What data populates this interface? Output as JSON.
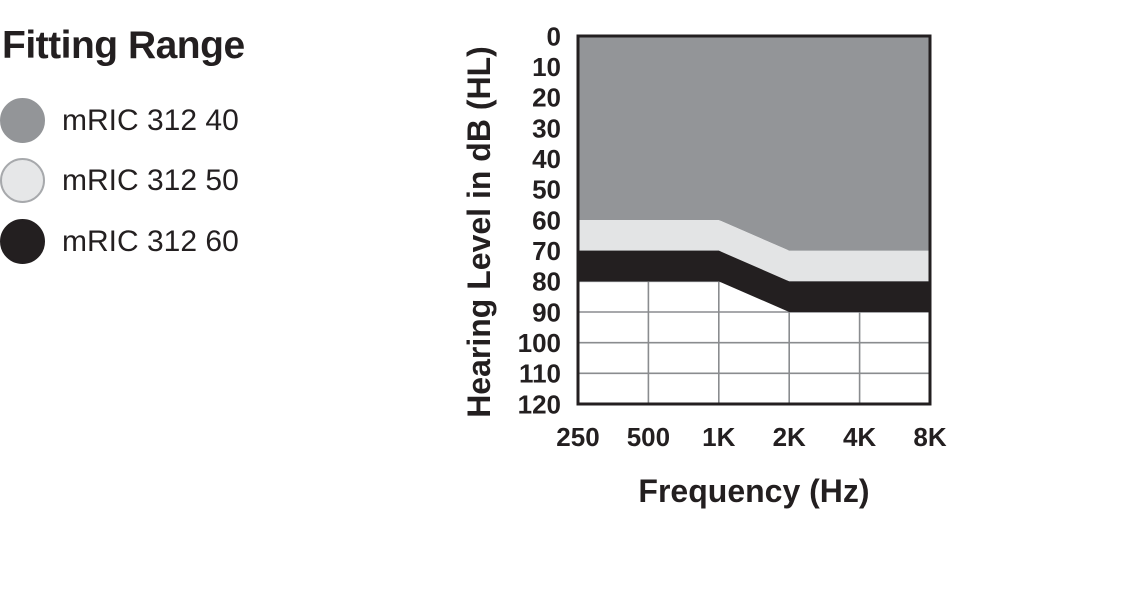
{
  "page": {
    "background": "#ffffff"
  },
  "legend": {
    "title": "Fitting Range",
    "items": [
      {
        "label": "mRIC 312 40",
        "color": "#939598",
        "ring": "#939598"
      },
      {
        "label": "mRIC 312 50",
        "color": "#e6e7e8",
        "ring": "#a7a9ac"
      },
      {
        "label": "mRIC 312 60",
        "color": "#231f20",
        "ring": "#231f20"
      }
    ]
  },
  "chart_data": {
    "type": "area",
    "title": "Fitting Range",
    "xlabel": "Frequency (Hz)",
    "ylabel": "Hearing Level in dB (HL)",
    "categories": [
      "250",
      "500",
      "1K",
      "2K",
      "4K",
      "8K"
    ],
    "y_ticks": [
      0,
      10,
      20,
      30,
      40,
      50,
      60,
      70,
      80,
      90,
      100,
      110,
      120
    ],
    "ylim": [
      0,
      120
    ],
    "y_axis_inverted": true,
    "grid": true,
    "legend_position": "left",
    "colors": {
      "plot_border": "#231f20",
      "gridline": "#8a8c8f",
      "text": "#231f20",
      "plot_background": "#ffffff"
    },
    "series": [
      {
        "name": "mRIC 312 40",
        "color": "#939598",
        "upper_db": [
          0,
          0,
          0,
          0,
          0,
          0
        ],
        "lower_db": [
          60,
          60,
          60,
          70,
          70,
          70
        ]
      },
      {
        "name": "mRIC 312 50",
        "color": "#e3e4e5",
        "upper_db": [
          60,
          60,
          60,
          70,
          70,
          70
        ],
        "lower_db": [
          70,
          70,
          70,
          80,
          80,
          80
        ]
      },
      {
        "name": "mRIC 312 60",
        "color": "#231f20",
        "upper_db": [
          70,
          70,
          70,
          80,
          80,
          80
        ],
        "lower_db": [
          80,
          80,
          80,
          90,
          90,
          90
        ]
      }
    ]
  }
}
